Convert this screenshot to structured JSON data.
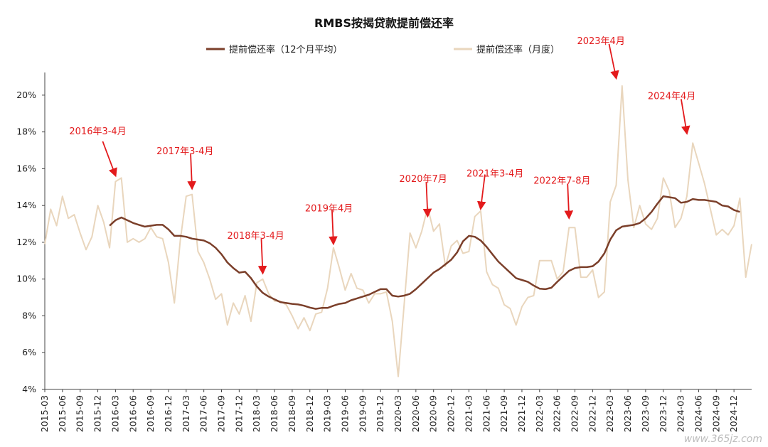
{
  "chart_data": {
    "type": "line",
    "title": "RMBS按揭贷款提前偿还率",
    "xlabel": "",
    "ylabel": "",
    "ylim": [
      0.04,
      0.21
    ],
    "yticks": [
      "4%",
      "6%",
      "8%",
      "10%",
      "12%",
      "14%",
      "16%",
      "18%",
      "20%"
    ],
    "ytick_values": [
      0.04,
      0.06,
      0.08,
      0.1,
      0.12,
      0.14,
      0.16,
      0.18,
      0.2
    ],
    "x_start": "2015-03",
    "x_end": "2025-03",
    "xticks": [
      "2015-03",
      "2015-06",
      "2015-09",
      "2015-12",
      "2016-03",
      "2016-06",
      "2016-09",
      "2016-12",
      "2017-03",
      "2017-06",
      "2017-09",
      "2017-12",
      "2018-03",
      "2018-06",
      "2018-09",
      "2018-12",
      "2019-03",
      "2019-06",
      "2019-09",
      "2019-12",
      "2020-03",
      "2020-06",
      "2020-09",
      "2020-12",
      "2021-03",
      "2021-06",
      "2021-09",
      "2021-12",
      "2022-03",
      "2022-06",
      "2022-09",
      "2022-12",
      "2023-03",
      "2023-06",
      "2023-09",
      "2023-12",
      "2024-03",
      "2024-06",
      "2024-09",
      "2024-12"
    ],
    "legend_position": "top",
    "colors": {
      "avg": "#7b3f2a",
      "monthly": "#e9d6bd",
      "annotation": "#e31a1c"
    },
    "series": [
      {
        "name": "提前偿还率（12个月平均）",
        "start": "2016-02",
        "values": [
          0.129,
          0.132,
          0.1335,
          0.132,
          0.1305,
          0.1295,
          0.1285,
          0.129,
          0.1295,
          0.1295,
          0.127,
          0.1235,
          0.1235,
          0.123,
          0.122,
          0.1215,
          0.121,
          0.1195,
          0.117,
          0.1135,
          0.109,
          0.106,
          0.1035,
          0.104,
          0.1005,
          0.096,
          0.0925,
          0.0905,
          0.089,
          0.0875,
          0.087,
          0.0865,
          0.0862,
          0.0855,
          0.0845,
          0.0838,
          0.0843,
          0.0843,
          0.0855,
          0.0865,
          0.087,
          0.0885,
          0.0895,
          0.0905,
          0.0915,
          0.093,
          0.0945,
          0.0945,
          0.091,
          0.0905,
          0.091,
          0.092,
          0.0945,
          0.0975,
          0.1005,
          0.1035,
          0.1055,
          0.108,
          0.1105,
          0.1145,
          0.1205,
          0.1235,
          0.123,
          0.121,
          0.1175,
          0.1135,
          0.1095,
          0.1065,
          0.1035,
          0.1005,
          0.0995,
          0.0985,
          0.0965,
          0.0948,
          0.0945,
          0.0953,
          0.0985,
          0.1015,
          0.1045,
          0.106,
          0.1065,
          0.1065,
          0.107,
          0.1095,
          0.114,
          0.1215,
          0.1265,
          0.1285,
          0.129,
          0.1295,
          0.1305,
          0.133,
          0.1365,
          0.141,
          0.145,
          0.1445,
          0.144,
          0.1415,
          0.142,
          0.1435,
          0.143,
          0.143,
          0.1425,
          0.142,
          0.14,
          0.1395,
          0.1375,
          0.1365
        ]
      },
      {
        "name": "提前偿还率（月度）",
        "start": "2015-03",
        "values": [
          0.119,
          0.138,
          0.129,
          0.145,
          0.133,
          0.135,
          0.125,
          0.116,
          0.123,
          0.14,
          0.131,
          0.117,
          0.153,
          0.155,
          0.12,
          0.122,
          0.12,
          0.122,
          0.128,
          0.123,
          0.122,
          0.109,
          0.087,
          0.121,
          0.145,
          0.146,
          0.115,
          0.109,
          0.1,
          0.089,
          0.092,
          0.075,
          0.087,
          0.081,
          0.091,
          0.077,
          0.098,
          0.1,
          0.092,
          0.088,
          0.088,
          0.086,
          0.08,
          0.073,
          0.079,
          0.072,
          0.081,
          0.082,
          0.095,
          0.117,
          0.106,
          0.094,
          0.103,
          0.095,
          0.094,
          0.087,
          0.092,
          0.092,
          0.093,
          0.077,
          0.047,
          0.086,
          0.125,
          0.117,
          0.126,
          0.139,
          0.126,
          0.13,
          0.107,
          0.118,
          0.121,
          0.114,
          0.115,
          0.134,
          0.137,
          0.104,
          0.097,
          0.095,
          0.086,
          0.084,
          0.075,
          0.085,
          0.09,
          0.091,
          0.11,
          0.11,
          0.11,
          0.1,
          0.104,
          0.128,
          0.128,
          0.101,
          0.101,
          0.105,
          0.09,
          0.093,
          0.142,
          0.151,
          0.205,
          0.154,
          0.128,
          0.14,
          0.13,
          0.127,
          0.133,
          0.155,
          0.148,
          0.128,
          0.133,
          0.145,
          0.174,
          0.163,
          0.152,
          0.138,
          0.124,
          0.127,
          0.124,
          0.129,
          0.144,
          0.101,
          0.119
        ]
      }
    ],
    "annotations": [
      {
        "text": "2016年3-4月",
        "month": "2016-03",
        "value": 0.154,
        "dx": -75,
        "dy": -55,
        "label_dx": -65,
        "label_dy": -58
      },
      {
        "text": "2017年3-4月",
        "month": "2017-04",
        "value": 0.147,
        "dx": 0,
        "dy": -55,
        "label_dx": -50,
        "label_dy": -48
      },
      {
        "text": "2018年3-4月",
        "month": "2018-04",
        "value": 0.101,
        "dx": 0,
        "dy": -55,
        "label_dx": -50,
        "label_dy": -48
      },
      {
        "text": "2019年4月",
        "month": "2019-04",
        "value": 0.117,
        "dx": 0,
        "dy": -55,
        "label_dx": -40,
        "label_dy": -45
      },
      {
        "text": "2020年7月",
        "month": "2020-08",
        "value": 0.132,
        "dx": 0,
        "dy": -55,
        "label_dx": -40,
        "label_dy": -48
      },
      {
        "text": "2021年3-4月",
        "month": "2021-05",
        "value": 0.136,
        "dx": 0,
        "dy": -55,
        "label_dx": -20,
        "label_dy": -45
      },
      {
        "text": "2022年7-8月",
        "month": "2022-08",
        "value": 0.131,
        "dx": 0,
        "dy": -55,
        "label_dx": -50,
        "label_dy": -48
      },
      {
        "text": "2023年4月",
        "month": "2023-04",
        "value": 0.207,
        "dx": 0,
        "dy": -55,
        "label_dx": -55,
        "label_dy": -48
      },
      {
        "text": "2024年4月",
        "month": "2024-04",
        "value": 0.177,
        "dx": 0,
        "dy": -55,
        "label_dx": -55,
        "label_dy": -48
      }
    ],
    "watermark": "www.365jz.com"
  }
}
